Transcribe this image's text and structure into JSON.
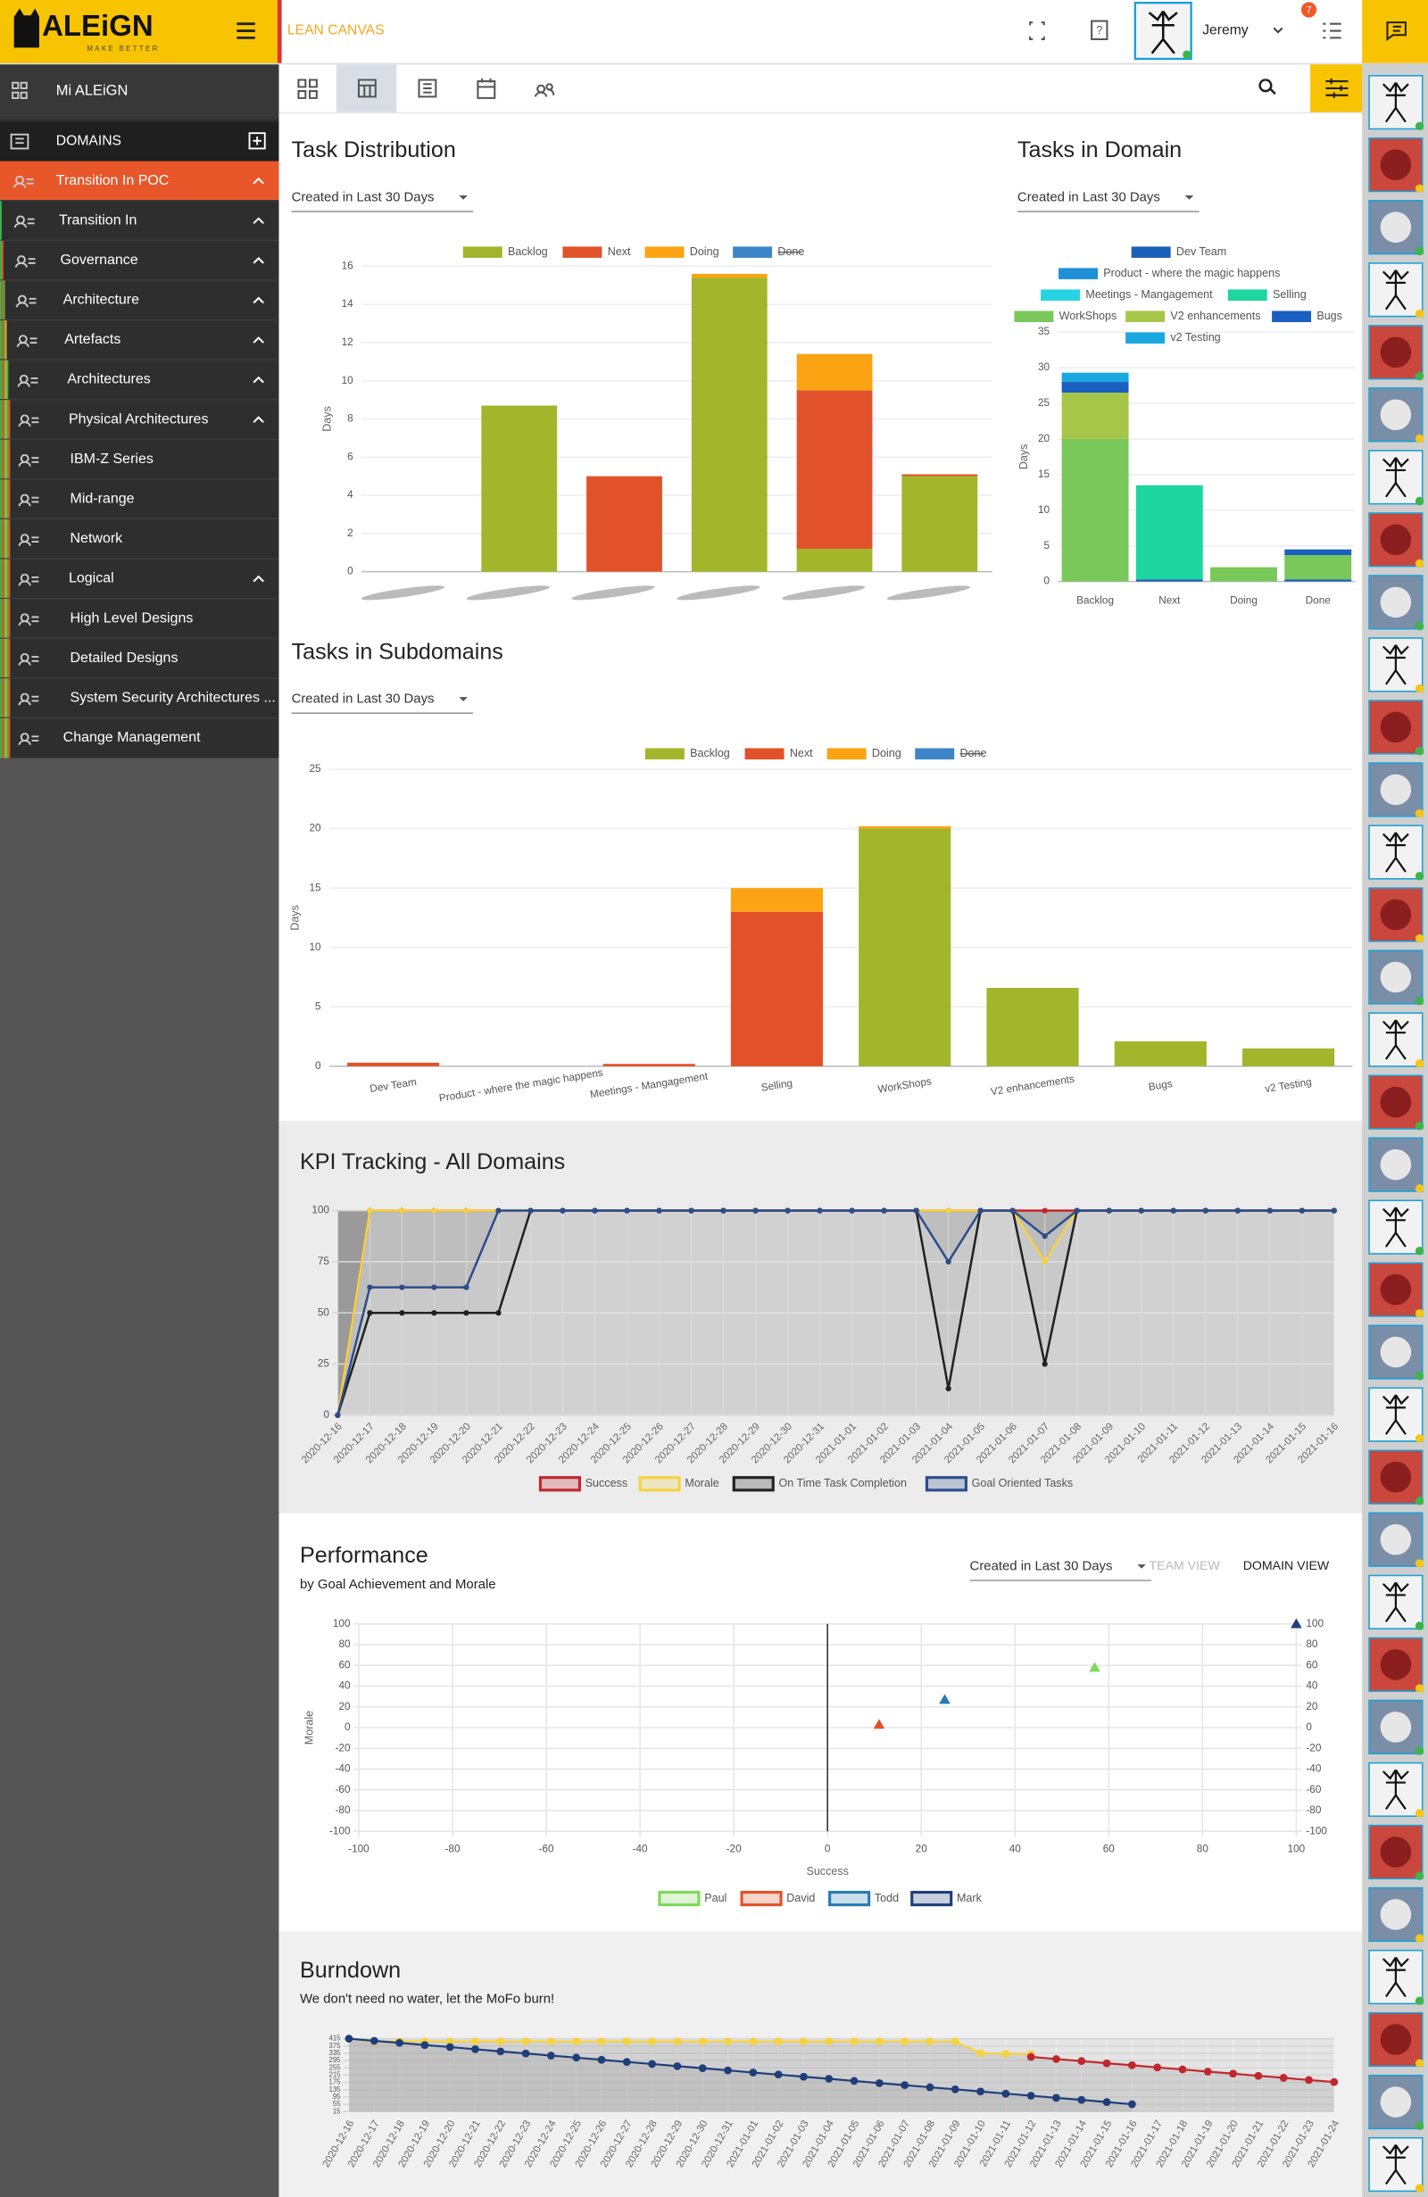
{
  "header": {
    "logo": "ALEiGN",
    "logo_tagline": "MAKE BETTER",
    "section": "LEAN CANVAS",
    "user": "Jeremy",
    "notifications": 7
  },
  "sidebar": {
    "home": "Mi ALEiGN",
    "domains": "DOMAINS",
    "items": [
      "Transition In POC",
      "Transition In",
      "Governance",
      "Architecture",
      "Artefacts",
      "Architectures",
      "Physical Architectures",
      "IBM-Z Series",
      "Mid-range",
      "Network",
      "Logical",
      "High Level Designs",
      "Detailed Designs",
      "System Security Architectures ...",
      "Change Management"
    ]
  },
  "chart_data": [
    {
      "type": "bar",
      "stacked": true,
      "title": "Task Distribution",
      "filter": "Created in Last 30 Days",
      "y_label": "Days",
      "legend": "top",
      "grid": true,
      "categories": [
        null,
        null,
        null,
        null,
        null,
        null
      ],
      "series": [
        {
          "name": "Backlog",
          "color": "#a2b52b",
          "values": [
            0,
            8.7,
            0,
            15.4,
            1.2,
            5.0
          ]
        },
        {
          "name": "Next",
          "color": "#e1522a",
          "values": [
            0,
            0,
            5.0,
            0,
            8.3,
            0.1
          ]
        },
        {
          "name": "Doing",
          "color": "#fca313",
          "values": [
            0,
            0,
            0,
            0.2,
            1.9,
            0
          ]
        },
        {
          "name": "Done",
          "color": "#3d85c6",
          "hidden": true,
          "values": [
            null,
            null,
            null,
            null,
            null,
            null
          ]
        }
      ],
      "ylim": [
        0,
        16
      ],
      "yticks": [
        0,
        2,
        4,
        6,
        8,
        10,
        12,
        14,
        16
      ]
    },
    {
      "type": "bar",
      "stacked": true,
      "title": "Tasks in Domain",
      "filter": "Created in Last 30 Days",
      "y_label": "Days",
      "legend": "top",
      "grid": true,
      "categories": [
        "Backlog",
        "Next",
        "Doing",
        "Done"
      ],
      "series": [
        {
          "name": "Dev Team",
          "color": "#1c5fb8",
          "values": [
            0,
            0.3,
            0,
            0.3
          ]
        },
        {
          "name": "Product - where the magic happens",
          "color": "#1e90d6",
          "values": [
            0,
            0,
            0,
            0
          ]
        },
        {
          "name": "Meetings - Mangagement",
          "color": "#26d3e3",
          "values": [
            0,
            0,
            0,
            0
          ]
        },
        {
          "name": "Selling",
          "color": "#1dd6a0",
          "values": [
            0,
            13.2,
            0,
            0
          ]
        },
        {
          "name": "WorkShops",
          "color": "#7ac85a",
          "values": [
            20,
            0,
            2,
            3.4
          ]
        },
        {
          "name": "V2 enhancements",
          "color": "#a6c64a",
          "values": [
            6.5,
            0,
            0,
            0
          ]
        },
        {
          "name": "Bugs",
          "color": "#1b5fc0",
          "values": [
            1.5,
            0,
            0,
            0.8
          ]
        },
        {
          "name": "v2 Testing",
          "color": "#19a8e0",
          "values": [
            1.3,
            0,
            0,
            0
          ]
        }
      ],
      "ylim": [
        0,
        35
      ],
      "yticks": [
        0,
        5,
        10,
        15,
        20,
        25,
        30,
        35
      ]
    },
    {
      "type": "bar",
      "stacked": true,
      "title": "Tasks in Subdomains",
      "filter": "Created in Last 30 Days",
      "y_label": "Days",
      "legend": "top",
      "grid": true,
      "categories": [
        "Dev Team",
        "Product - where the magic happens",
        "Meetings - Mangagement",
        "Selling",
        "WorkShops",
        "V2 enhancements",
        "Bugs",
        "v2 Testing"
      ],
      "series": [
        {
          "name": "Backlog",
          "color": "#a2b52b",
          "values": [
            0,
            0,
            0,
            0,
            20,
            6.6,
            2.1,
            1.5
          ]
        },
        {
          "name": "Next",
          "color": "#e1522a",
          "values": [
            0.3,
            0,
            0.2,
            13,
            0,
            0,
            0,
            0
          ]
        },
        {
          "name": "Doing",
          "color": "#fca313",
          "values": [
            0,
            0,
            0,
            2,
            0.2,
            0,
            0,
            0
          ]
        },
        {
          "name": "Done",
          "color": "#3d85c6",
          "hidden": true,
          "values": [
            null,
            null,
            null,
            null,
            null,
            null,
            null,
            null
          ]
        }
      ],
      "ylim": [
        0,
        25
      ],
      "yticks": [
        0,
        5,
        10,
        15,
        20,
        25
      ]
    },
    {
      "type": "line",
      "fill": true,
      "title": "KPI Tracking - All Domains",
      "legend": "bottom",
      "grid": true,
      "x": [
        "2020-12-16",
        "2020-12-17",
        "2020-12-18",
        "2020-12-19",
        "2020-12-20",
        "2020-12-21",
        "2020-12-22",
        "2020-12-23",
        "2020-12-24",
        "2020-12-25",
        "2020-12-26",
        "2020-12-27",
        "2020-12-28",
        "2020-12-29",
        "2020-12-30",
        "2020-12-31",
        "2021-01-01",
        "2021-01-02",
        "2021-01-03",
        "2021-01-04",
        "2021-01-05",
        "2021-01-06",
        "2021-01-07",
        "2021-01-08",
        "2021-01-09",
        "2021-01-10",
        "2021-01-11",
        "2021-01-12",
        "2021-01-13",
        "2021-01-14",
        "2021-01-15",
        "2021-01-16"
      ],
      "series": [
        {
          "name": "Success",
          "color": "#c0282e",
          "values": [
            0,
            100,
            100,
            100,
            100,
            100,
            100,
            100,
            100,
            100,
            100,
            100,
            100,
            100,
            100,
            100,
            100,
            100,
            100,
            100,
            100,
            100,
            100,
            100,
            100,
            100,
            100,
            100,
            100,
            100,
            100,
            100
          ]
        },
        {
          "name": "Morale",
          "color": "#f5d33f",
          "values": [
            0,
            100,
            100,
            100,
            100,
            100,
            100,
            100,
            100,
            100,
            100,
            100,
            100,
            100,
            100,
            100,
            100,
            100,
            100,
            100,
            100,
            100,
            75,
            100,
            100,
            100,
            100,
            100,
            100,
            100,
            100,
            100
          ]
        },
        {
          "name": "On Time Task Completion",
          "color": "#222222",
          "values": [
            0,
            50,
            50,
            50,
            50,
            50,
            100,
            100,
            100,
            100,
            100,
            100,
            100,
            100,
            100,
            100,
            100,
            100,
            100,
            13,
            100,
            100,
            25,
            100,
            100,
            100,
            100,
            100,
            100,
            100,
            100,
            100
          ]
        },
        {
          "name": "Goal Oriented Tasks",
          "color": "#2d4d8a",
          "values": [
            0,
            62.5,
            62.5,
            62.5,
            62.5,
            100,
            100,
            100,
            100,
            100,
            100,
            100,
            100,
            100,
            100,
            100,
            100,
            100,
            100,
            75,
            100,
            100,
            87.5,
            100,
            100,
            100,
            100,
            100,
            100,
            100,
            100,
            100
          ]
        }
      ],
      "ylim": [
        0,
        100
      ],
      "yticks": [
        0,
        25,
        50,
        75,
        100
      ]
    },
    {
      "type": "scatter",
      "title": "Performance",
      "subtitle": "by Goal Achievement and Morale",
      "filter": "Created in Last 30 Days",
      "views": [
        "TEAM VIEW",
        "DOMAIN VIEW"
      ],
      "active_view": 1,
      "x_label": "Success",
      "y_label": "Morale",
      "legend": "bottom",
      "grid": true,
      "series": [
        {
          "name": "Paul",
          "color": "#7ed957",
          "x": [
            57
          ],
          "values": [
            58
          ]
        },
        {
          "name": "David",
          "color": "#e1522a",
          "x": [
            11
          ],
          "values": [
            3
          ]
        },
        {
          "name": "Todd",
          "color": "#2a7ab0",
          "x": [
            25
          ],
          "values": [
            27
          ]
        },
        {
          "name": "Mark",
          "color": "#1f3f7a",
          "x": [
            100
          ],
          "values": [
            100
          ]
        }
      ],
      "xlim": [
        -100,
        100
      ],
      "xticks": [
        -100,
        -80,
        -60,
        -40,
        -20,
        0,
        20,
        40,
        60,
        80,
        100
      ],
      "ylim": [
        -100,
        100
      ],
      "yticks": [
        -100,
        -80,
        -60,
        -40,
        -20,
        0,
        20,
        40,
        60,
        80,
        100
      ],
      "y2lim": [
        -100,
        100
      ],
      "y2ticks": [
        -100,
        -80,
        -60,
        -40,
        -20,
        0,
        20,
        40,
        60,
        80,
        100
      ]
    },
    {
      "type": "line",
      "fill": true,
      "title": "Burndown",
      "subtitle": "We don't need no water, let the MoFo burn!",
      "grid": true,
      "x": [
        "2020-12-16",
        "2020-12-17",
        "2020-12-18",
        "2020-12-19",
        "2020-12-20",
        "2020-12-21",
        "2020-12-22",
        "2020-12-23",
        "2020-12-24",
        "2020-12-25",
        "2020-12-26",
        "2020-12-27",
        "2020-12-28",
        "2020-12-29",
        "2020-12-30",
        "2020-12-31",
        "2021-01-01",
        "2021-01-02",
        "2021-01-03",
        "2021-01-04",
        "2021-01-05",
        "2021-01-06",
        "2021-01-07",
        "2021-01-08",
        "2021-01-09",
        "2021-01-10",
        "2021-01-11",
        "2021-01-12",
        "2021-01-13",
        "2021-01-14",
        "2021-01-15",
        "2021-01-16",
        "2021-01-17",
        "2021-01-18",
        "2021-01-19",
        "2021-01-20",
        "2021-01-21",
        "2021-01-22",
        "2021-01-23",
        "2021-01-24"
      ],
      "series": [
        {
          "color": "#f5d33f",
          "values": [
            415,
            400,
            400,
            400,
            400,
            400,
            400,
            400,
            400,
            400,
            400,
            400,
            400,
            400,
            400,
            400,
            400,
            400,
            400,
            400,
            400,
            400,
            400,
            400,
            400,
            335,
            332,
            330,
            null,
            null,
            null,
            null,
            null,
            null,
            null,
            null,
            null,
            null,
            null,
            null
          ]
        },
        {
          "color": "#c0282e",
          "values": [
            null,
            null,
            null,
            null,
            null,
            null,
            null,
            null,
            null,
            null,
            null,
            null,
            null,
            null,
            null,
            null,
            null,
            null,
            null,
            null,
            null,
            null,
            null,
            null,
            null,
            null,
            null,
            315,
            303,
            292,
            280,
            269,
            257,
            246,
            234,
            223,
            211,
            200,
            188,
            177
          ]
        },
        {
          "color": "#1f3f7a",
          "values": [
            415,
            403,
            392,
            380,
            369,
            357,
            345,
            334,
            322,
            311,
            299,
            287,
            276,
            264,
            253,
            241,
            229,
            218,
            206,
            195,
            183,
            171,
            160,
            148,
            137,
            125,
            113,
            102,
            90,
            79,
            67,
            55,
            null,
            null,
            null,
            null,
            null,
            null,
            null,
            null
          ]
        }
      ],
      "ylim": [
        15,
        415
      ],
      "yticks": [
        15,
        55,
        95,
        135,
        175,
        215,
        255,
        295,
        335,
        375,
        415
      ]
    }
  ]
}
